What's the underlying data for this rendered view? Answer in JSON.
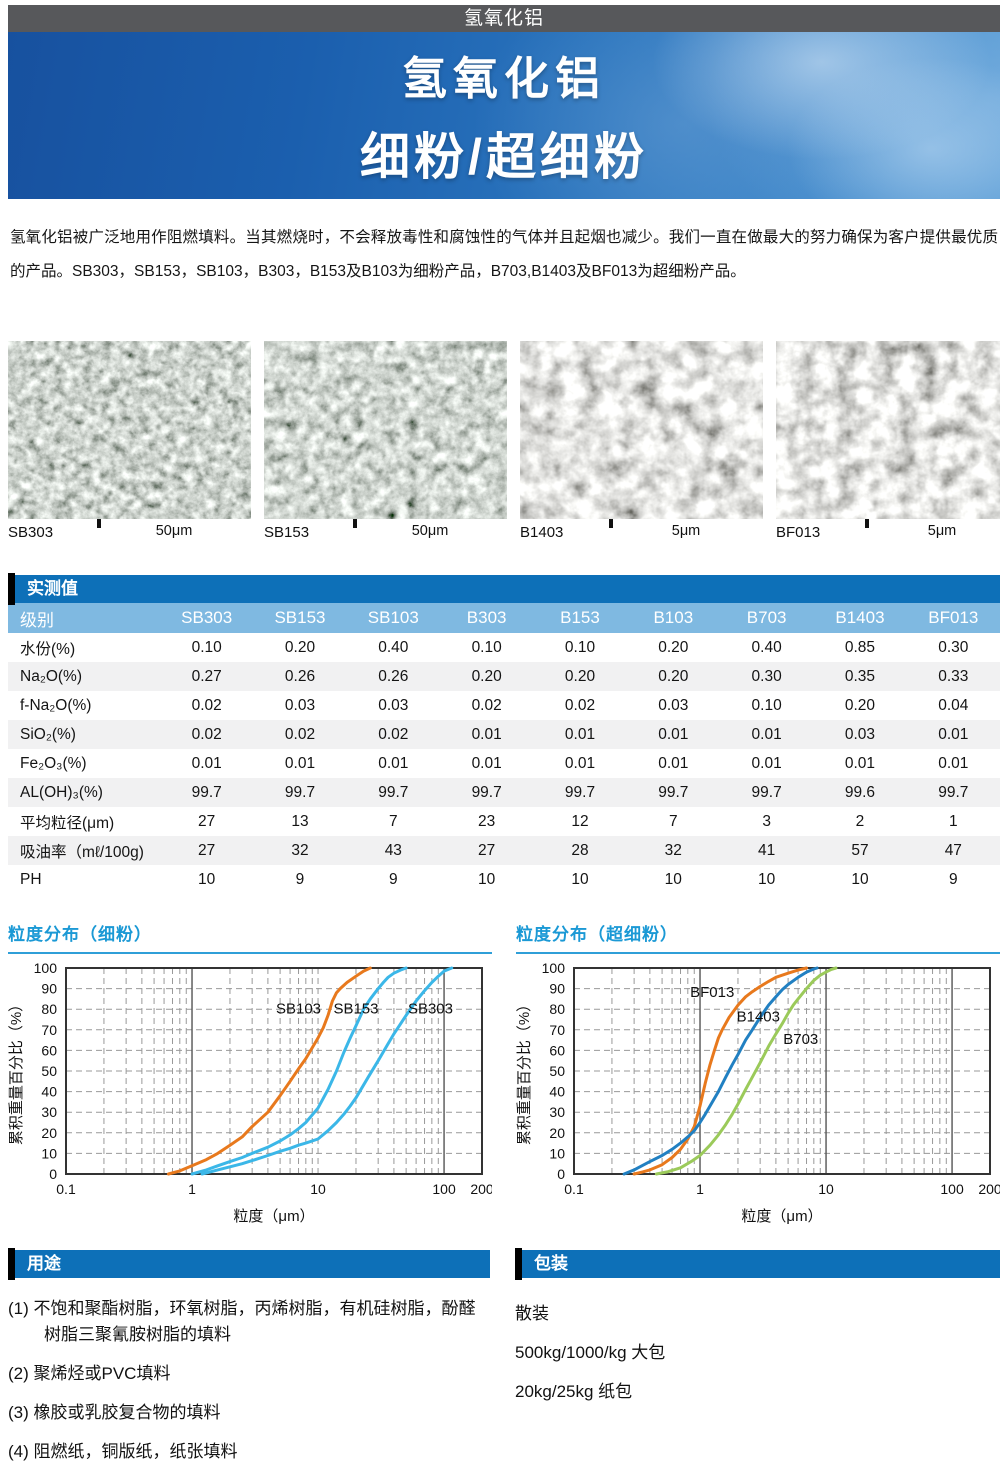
{
  "topbar": {
    "title": "氢氧化铝"
  },
  "hero": {
    "line1": "氢氧化铝",
    "line2": "细粉/超细粉"
  },
  "intro": {
    "text": "氢氧化铝被广泛地用作阻燃填料。当其燃烧时，不会释放毒性和腐蚀性的气体并且起烟也减少。我们一直在做最大的努力确保为客户提供最优质的产品。SB303，SB153，SB103，B303，B153及B103为细粉产品，B703,B1403及BF013为超细粉产品。"
  },
  "sem_images": [
    {
      "label": "SB303",
      "scale": "50μm"
    },
    {
      "label": "SB153",
      "scale": "50μm"
    },
    {
      "label": "B1403",
      "scale": "5μm"
    },
    {
      "label": "BF013",
      "scale": "5μm"
    }
  ],
  "table": {
    "section_title": "实测值",
    "header_label": "级别",
    "columns": [
      "SB303",
      "SB153",
      "SB103",
      "B303",
      "B153",
      "B103",
      "B703",
      "B1403",
      "BF013"
    ],
    "rows": [
      {
        "label": "水份(%)",
        "values": [
          "0.10",
          "0.20",
          "0.40",
          "0.10",
          "0.10",
          "0.20",
          "0.40",
          "0.85",
          "0.30"
        ]
      },
      {
        "label": "Na₂O(%)",
        "values": [
          "0.27",
          "0.26",
          "0.26",
          "0.20",
          "0.20",
          "0.20",
          "0.30",
          "0.35",
          "0.33"
        ]
      },
      {
        "label": "f-Na₂O(%)",
        "values": [
          "0.02",
          "0.03",
          "0.03",
          "0.02",
          "0.02",
          "0.03",
          "0.10",
          "0.20",
          "0.04"
        ]
      },
      {
        "label": "SiO₂(%)",
        "values": [
          "0.02",
          "0.02",
          "0.02",
          "0.01",
          "0.01",
          "0.01",
          "0.01",
          "0.03",
          "0.01"
        ]
      },
      {
        "label": "Fe₂O₃(%)",
        "values": [
          "0.01",
          "0.01",
          "0.01",
          "0.01",
          "0.01",
          "0.01",
          "0.01",
          "0.01",
          "0.01"
        ]
      },
      {
        "label": "AL(OH)₃(%)",
        "values": [
          "99.7",
          "99.7",
          "99.7",
          "99.7",
          "99.7",
          "99.7",
          "99.7",
          "99.6",
          "99.7"
        ]
      },
      {
        "label": "平均粒径(μm)",
        "values": [
          "27",
          "13",
          "7",
          "23",
          "12",
          "7",
          "3",
          "2",
          "1"
        ]
      },
      {
        "label": "吸油率（mℓ/100g)",
        "values": [
          "27",
          "32",
          "43",
          "27",
          "28",
          "32",
          "41",
          "57",
          "47"
        ]
      },
      {
        "label": "PH",
        "values": [
          "10",
          "9",
          "9",
          "10",
          "10",
          "10",
          "10",
          "10",
          "9"
        ]
      }
    ]
  },
  "chart_data": [
    {
      "type": "line",
      "title": "粒度分布（细粉）",
      "xlabel": "粒度（μm）",
      "ylabel": "累积重量百分比（%）",
      "x_scale": "log",
      "xlim": [
        0.1,
        200
      ],
      "ylim": [
        0,
        100
      ],
      "x_ticks": [
        0.1,
        1,
        10,
        100,
        200
      ],
      "y_tick_step": 10,
      "grid": "dashed",
      "solid_vlines": [
        1,
        100
      ],
      "legend_position": "inline-labels",
      "series": [
        {
          "name": "SB103",
          "color": "#e8791d",
          "label_pos": [
            7,
            78
          ],
          "points": [
            [
              0.65,
              0
            ],
            [
              0.8,
              1.5
            ],
            [
              1,
              4
            ],
            [
              1.3,
              7
            ],
            [
              1.6,
              10
            ],
            [
              2,
              14
            ],
            [
              2.5,
              18
            ],
            [
              3,
              23
            ],
            [
              4,
              30
            ],
            [
              5,
              38
            ],
            [
              6,
              45
            ],
            [
              7,
              51
            ],
            [
              8,
              56
            ],
            [
              10,
              66
            ],
            [
              11,
              71
            ],
            [
              12,
              77
            ],
            [
              13,
              84
            ],
            [
              14,
              88
            ],
            [
              15,
              90
            ],
            [
              17,
              93
            ],
            [
              20,
              96
            ],
            [
              23,
              98.5
            ],
            [
              26,
              100
            ]
          ]
        },
        {
          "name": "SB153",
          "color": "#3bb7e8",
          "label_pos": [
            20,
            78
          ],
          "points": [
            [
              1,
              0
            ],
            [
              1.3,
              2
            ],
            [
              1.6,
              4
            ],
            [
              2,
              6
            ],
            [
              2.5,
              8
            ],
            [
              3,
              10
            ],
            [
              4,
              13
            ],
            [
              5,
              16
            ],
            [
              6,
              19
            ],
            [
              7,
              22
            ],
            [
              8,
              25
            ],
            [
              10,
              32
            ],
            [
              12,
              41
            ],
            [
              14,
              50
            ],
            [
              16,
              59
            ],
            [
              18,
              66
            ],
            [
              20,
              72
            ],
            [
              23,
              80
            ],
            [
              26,
              85
            ],
            [
              30,
              90
            ],
            [
              33,
              93
            ],
            [
              36,
              95.5
            ],
            [
              40,
              97.5
            ],
            [
              45,
              99
            ],
            [
              50,
              100
            ]
          ]
        },
        {
          "name": "SB303",
          "color": "#3bb7e8",
          "label_pos": [
            78,
            78
          ],
          "points": [
            [
              1.2,
              0
            ],
            [
              1.6,
              2
            ],
            [
              2,
              3.5
            ],
            [
              2.5,
              5
            ],
            [
              3,
              6.5
            ],
            [
              4,
              9
            ],
            [
              5,
              11
            ],
            [
              6,
              12.5
            ],
            [
              7,
              14
            ],
            [
              8,
              15
            ],
            [
              10,
              17
            ],
            [
              12,
              21
            ],
            [
              14,
              25
            ],
            [
              16,
              29
            ],
            [
              18,
              33
            ],
            [
              20,
              37
            ],
            [
              25,
              47
            ],
            [
              30,
              55
            ],
            [
              35,
              62
            ],
            [
              40,
              68
            ],
            [
              50,
              77
            ],
            [
              60,
              84
            ],
            [
              70,
              89
            ],
            [
              80,
              93
            ],
            [
              90,
              96
            ],
            [
              100,
              98.5
            ],
            [
              115,
              100
            ]
          ]
        }
      ]
    },
    {
      "type": "line",
      "title": "粒度分布（超细粉）",
      "xlabel": "粒度（μm）",
      "ylabel": "累积重量百分比（%）",
      "x_scale": "log",
      "xlim": [
        0.1,
        200
      ],
      "ylim": [
        0,
        100
      ],
      "x_ticks": [
        0.1,
        1,
        10,
        100,
        200
      ],
      "y_tick_step": 10,
      "grid": "dashed",
      "solid_vlines": [
        1,
        10,
        100
      ],
      "legend_position": "inline-labels",
      "series": [
        {
          "name": "BF013",
          "color": "#e8791d",
          "label_pos": [
            1.25,
            86
          ],
          "points": [
            [
              0.3,
              0
            ],
            [
              0.35,
              1
            ],
            [
              0.4,
              2
            ],
            [
              0.5,
              4.5
            ],
            [
              0.6,
              8
            ],
            [
              0.7,
              12
            ],
            [
              0.8,
              17
            ],
            [
              0.9,
              23
            ],
            [
              1.0,
              33
            ],
            [
              1.1,
              44
            ],
            [
              1.2,
              53
            ],
            [
              1.3,
              60
            ],
            [
              1.4,
              66
            ],
            [
              1.5,
              70
            ],
            [
              1.7,
              76
            ],
            [
              2.0,
              82
            ],
            [
              2.3,
              86
            ],
            [
              2.6,
              88.5
            ],
            [
              3.0,
              91
            ],
            [
              3.5,
              93.5
            ],
            [
              4,
              95.5
            ],
            [
              5,
              97.5
            ],
            [
              6,
              99
            ],
            [
              7,
              100
            ]
          ]
        },
        {
          "name": "B1403",
          "color": "#2180c2",
          "label_pos": [
            2.9,
            74
          ],
          "points": [
            [
              0.25,
              0
            ],
            [
              0.3,
              2
            ],
            [
              0.4,
              6
            ],
            [
              0.5,
              9
            ],
            [
              0.6,
              12
            ],
            [
              0.7,
              15
            ],
            [
              0.8,
              18
            ],
            [
              0.9,
              21
            ],
            [
              1.0,
              25
            ],
            [
              1.1,
              29
            ],
            [
              1.2,
              33
            ],
            [
              1.4,
              40
            ],
            [
              1.6,
              47
            ],
            [
              1.8,
              53
            ],
            [
              2.0,
              58
            ],
            [
              2.3,
              65
            ],
            [
              2.6,
              70
            ],
            [
              3.0,
              76
            ],
            [
              3.5,
              82
            ],
            [
              4.0,
              86
            ],
            [
              4.5,
              89.5
            ],
            [
              5.0,
              92
            ],
            [
              6.0,
              95.5
            ],
            [
              7.0,
              98
            ],
            [
              8.0,
              99.5
            ],
            [
              8.5,
              100
            ]
          ]
        },
        {
          "name": "B703",
          "color": "#9bca5a",
          "label_pos": [
            6.3,
            63
          ],
          "points": [
            [
              0.45,
              0
            ],
            [
              0.55,
              1
            ],
            [
              0.7,
              3
            ],
            [
              0.85,
              6
            ],
            [
              1.0,
              9
            ],
            [
              1.2,
              14
            ],
            [
              1.4,
              19
            ],
            [
              1.6,
              24
            ],
            [
              1.8,
              29
            ],
            [
              2.0,
              34
            ],
            [
              2.3,
              41
            ],
            [
              2.6,
              47
            ],
            [
              3.0,
              54
            ],
            [
              3.5,
              62
            ],
            [
              4.0,
              68
            ],
            [
              4.5,
              73
            ],
            [
              5.0,
              78
            ],
            [
              5.5,
              82
            ],
            [
              6.0,
              85
            ],
            [
              7.0,
              90
            ],
            [
              8.0,
              94
            ],
            [
              9.0,
              96.5
            ],
            [
              10,
              98
            ],
            [
              11,
              99.3
            ],
            [
              12,
              100
            ]
          ]
        }
      ]
    }
  ],
  "uses": {
    "section_title": "用途",
    "items": [
      "(1) 不饱和聚酯树脂，环氧树脂，丙烯树脂，有机硅树脂，酚醛树脂三聚氰胺树脂的填料",
      "(2) 聚烯烃或PVC填料",
      "(3) 橡胶或乳胶复合物的填料",
      "(4) 阻燃纸，铜版纸，纸张填料"
    ]
  },
  "packaging": {
    "section_title": "包装",
    "items": [
      "散装",
      "500kg/1000/kg 大包",
      "20kg/25kg 纸包"
    ]
  },
  "colors": {
    "topbar_bg": "#57585b",
    "hero_blue": "#1b5fae",
    "section_blue": "#0d70b8",
    "table_header_blue": "#7fb9e1",
    "chart_title_blue": "#1b99d5",
    "orange": "#e8791d",
    "cyan": "#3bb7e8",
    "blue": "#2180c2",
    "green": "#9bca5a"
  }
}
